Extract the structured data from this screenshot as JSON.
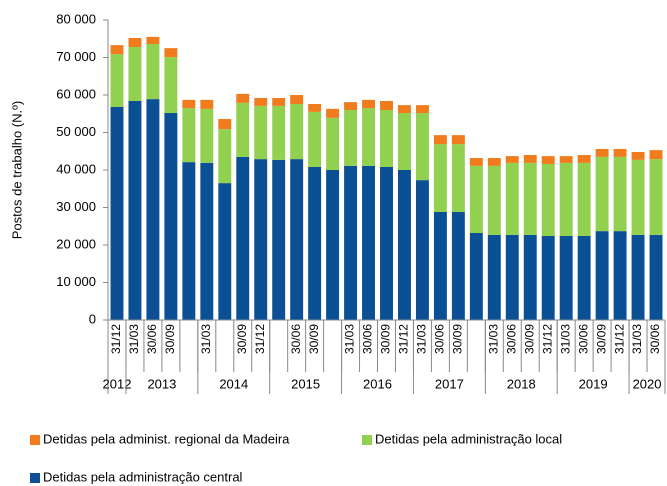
{
  "chart_data": {
    "type": "stacked_bar",
    "ylabel": "Postos de trabalho (N.º)",
    "categories": [
      "31/12",
      "31/03",
      "30/06",
      "30/09",
      null,
      "31/03",
      null,
      "30/09",
      "31/12",
      null,
      "30/06",
      "30/09",
      null,
      "31/03",
      "30/06",
      "30/09",
      "31/12",
      "31/03",
      "30/06",
      "30/09",
      null,
      "31/03",
      "30/06",
      "30/09",
      "31/12",
      "31/03",
      "30/06",
      "30/09",
      "31/12",
      "31/03",
      "30/06"
    ],
    "year_groups": [
      {
        "label": "2012",
        "size": 1
      },
      {
        "label": "2013",
        "size": 4
      },
      {
        "label": "2014",
        "size": 4
      },
      {
        "label": "2015",
        "size": 4
      },
      {
        "label": "2016",
        "size": 4
      },
      {
        "label": "2017",
        "size": 4
      },
      {
        "label": "2018",
        "size": 4
      },
      {
        "label": "2019",
        "size": 4
      },
      {
        "label": "2020",
        "size": 2
      }
    ],
    "series": [
      {
        "name": "Detidas pela administração central",
        "color": "#0b4f94",
        "values": [
          56800,
          58400,
          58900,
          55200,
          42100,
          41900,
          36500,
          43500,
          42900,
          42700,
          42900,
          40800,
          40000,
          41100,
          41100,
          40800,
          40000,
          37300,
          28800,
          28800,
          23200,
          22700,
          22700,
          22700,
          22400,
          22400,
          22400,
          23700,
          23700,
          22700,
          22700
        ]
      },
      {
        "name": "Detidas pela administração local",
        "color": "#92d050",
        "values": [
          14100,
          14400,
          14700,
          14900,
          14400,
          14400,
          14400,
          14400,
          14200,
          14400,
          14700,
          14700,
          13900,
          14900,
          15400,
          15200,
          15200,
          17900,
          18100,
          18100,
          17900,
          18400,
          19200,
          19200,
          19200,
          19500,
          19500,
          19800,
          19800,
          20000,
          20200
        ]
      },
      {
        "name": "Detidas pela administ. regional da Madeira",
        "color": "#f07c1e",
        "values": [
          2400,
          2400,
          1900,
          2400,
          2200,
          2400,
          2700,
          2400,
          2100,
          2100,
          2400,
          2100,
          2400,
          2100,
          2200,
          2400,
          2100,
          2100,
          2400,
          2400,
          2100,
          2100,
          1800,
          2100,
          2100,
          1800,
          2100,
          2100,
          2100,
          2100,
          2400
        ]
      }
    ],
    "ylim": [
      0,
      80000
    ],
    "yticks": [
      0,
      {
        "value": 10000,
        "label": "10 000"
      },
      {
        "value": 20000,
        "label": "20 000"
      },
      {
        "value": 30000,
        "label": "30 000"
      },
      {
        "value": 40000,
        "label": "40 000"
      },
      {
        "value": 50000,
        "label": "50 000"
      },
      {
        "value": 60000,
        "label": "60 000"
      },
      {
        "value": 70000,
        "label": "70 000"
      },
      {
        "value": 80000,
        "label": "80 000"
      }
    ]
  }
}
